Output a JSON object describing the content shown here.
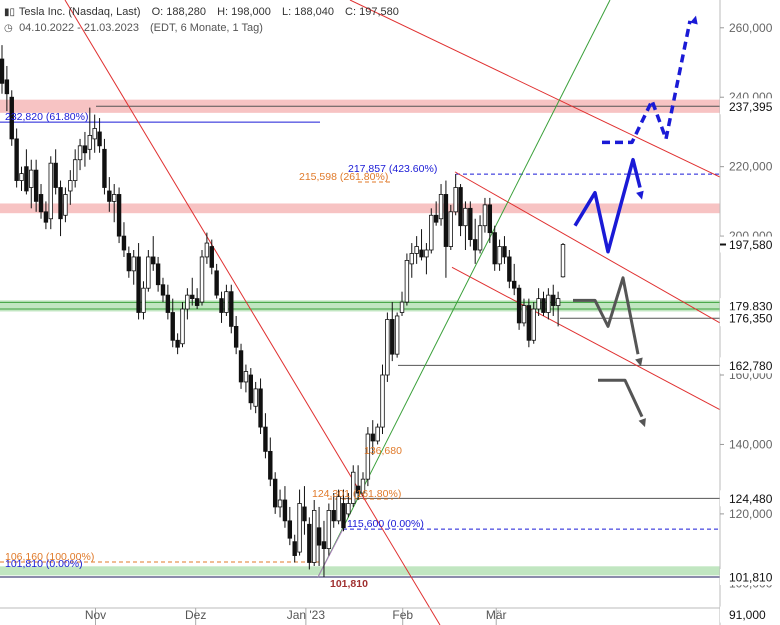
{
  "header": {
    "instrument": "Tesla Inc. (Nasdaq, Last)",
    "ohlc": {
      "O": "O: 188,280",
      "H": "H: 198,000",
      "L": "L: 188,040",
      "C": "C: 197,580"
    },
    "range": "04.10.2022 - 21.03.2023",
    "settings": "(EDT, 6 Monate, 1 Tag)",
    "icons": [
      "candlestick-icon",
      "clock-icon"
    ]
  },
  "chart_data": {
    "type": "candlestick",
    "title": "Tesla Inc. (Nasdaq, Last)",
    "x_range": [
      "2022-10-04",
      "2023-03-21"
    ],
    "x_tick_labels": [
      {
        "date": "2022-11-01",
        "label": "Nov"
      },
      {
        "date": "2022-12-01",
        "label": "Dez"
      },
      {
        "date": "2023-01-03",
        "label": "Jan '23"
      },
      {
        "date": "2023-02-01",
        "label": "Feb"
      },
      {
        "date": "2023-03-01",
        "label": "Mär"
      }
    ],
    "y_range": [
      88000,
      268000
    ],
    "y_ticks": [
      100000,
      120000,
      140000,
      160000,
      180000,
      200000,
      220000,
      240000,
      260000
    ],
    "y_tick_labels": [
      "100,000",
      "120,000",
      "140,000",
      "160,000",
      "180,000",
      "200,000",
      "220,000",
      "240,000",
      "260,000"
    ],
    "grid": false,
    "colors": {
      "up": "#ffffff",
      "down": "#111111",
      "red_line": "#e03030",
      "green_line": "#3aa03a",
      "blue": "#1a1ad6",
      "orange": "#e07a2a",
      "gray": "#555555",
      "red_zone": "#f4a9a9",
      "green_zone": "#a6dca6"
    },
    "candles": [
      [
        251.0,
        255.0,
        241.0,
        244.0
      ],
      [
        245.0,
        249.0,
        236.0,
        241.0
      ],
      [
        240.0,
        242.0,
        226.0,
        228.0
      ],
      [
        228.0,
        231.0,
        214.0,
        216.0
      ],
      [
        216.0,
        220.0,
        213.0,
        218.0
      ],
      [
        220.0,
        225.0,
        212.0,
        213.0
      ],
      [
        214.0,
        222.0,
        208.0,
        219.0
      ],
      [
        219.0,
        222.0,
        207.0,
        210.0
      ],
      [
        212.0,
        215.0,
        205.0,
        207.0
      ],
      [
        207.0,
        210.0,
        202.0,
        204.0
      ],
      [
        205.0,
        223.0,
        202.0,
        221.0
      ],
      [
        221.0,
        225.0,
        212.0,
        214.0
      ],
      [
        214.0,
        216.0,
        200.0,
        205.0
      ],
      [
        206.0,
        214.0,
        204.0,
        212.0
      ],
      [
        213.0,
        219.0,
        209.0,
        216.0
      ],
      [
        216.0,
        225.0,
        214.0,
        222.0
      ],
      [
        222.0,
        228.0,
        219.0,
        226.0
      ],
      [
        226.0,
        230.0,
        220.0,
        224.0
      ],
      [
        225.0,
        237.0,
        222.0,
        229.0
      ],
      [
        228.0,
        235.0,
        224.0,
        231.0
      ],
      [
        230.0,
        234.0,
        224.0,
        226.0
      ],
      [
        225.0,
        228.0,
        212.0,
        214.0
      ],
      [
        213.0,
        217.0,
        207.0,
        210.0
      ],
      [
        210.0,
        215.0,
        204.0,
        212.0
      ],
      [
        212.0,
        214.0,
        198.0,
        200.0
      ],
      [
        200.0,
        204.0,
        194.0,
        196.0
      ],
      [
        195.0,
        197.0,
        188.0,
        190.0
      ],
      [
        190.0,
        196.0,
        186.0,
        194.0
      ],
      [
        194.0,
        198.0,
        176.0,
        178.0
      ],
      [
        178.0,
        187.0,
        176.0,
        185.0
      ],
      [
        185.0,
        196.0,
        184.0,
        194.0
      ],
      [
        194.0,
        200.0,
        190.0,
        192.0
      ],
      [
        192.0,
        194.0,
        184.0,
        186.0
      ],
      [
        186.0,
        188.0,
        181.0,
        183.0
      ],
      [
        183.0,
        186.0,
        176.0,
        178.0
      ],
      [
        178.0,
        182.0,
        168.0,
        170.0
      ],
      [
        170.0,
        172.0,
        166.0,
        168.0
      ],
      [
        169.0,
        181.0,
        168.0,
        179.0
      ],
      [
        179.0,
        185.0,
        176.0,
        183.0
      ],
      [
        183.0,
        188.0,
        180.0,
        182.0
      ],
      [
        182.0,
        185.0,
        179.0,
        180.0
      ],
      [
        181.0,
        196.0,
        180.0,
        194.0
      ],
      [
        194.0,
        201.0,
        192.0,
        198.0
      ],
      [
        197.0,
        199.0,
        189.0,
        191.0
      ],
      [
        190.0,
        192.0,
        182.0,
        183.0
      ],
      [
        182.0,
        184.0,
        175.0,
        178.0
      ],
      [
        178.0,
        186.0,
        177.0,
        184.0
      ],
      [
        184.0,
        186.0,
        172.0,
        174.0
      ],
      [
        174.0,
        177.0,
        166.0,
        168.0
      ],
      [
        167.0,
        169.0,
        156.0,
        158.0
      ],
      [
        158.0,
        163.0,
        155.0,
        161.0
      ],
      [
        160.0,
        162.0,
        150.0,
        152.0
      ],
      [
        151.0,
        158.0,
        149.0,
        156.0
      ],
      [
        156.0,
        159.0,
        143.0,
        145.0
      ],
      [
        145.0,
        149.0,
        136.0,
        138.0
      ],
      [
        138.0,
        142.0,
        128.0,
        130.0
      ],
      [
        130.0,
        132.0,
        120.0,
        122.0
      ],
      [
        122.0,
        127.0,
        119.0,
        124.0
      ],
      [
        124.0,
        128.0,
        116.0,
        118.0
      ],
      [
        118.0,
        122.0,
        111.0,
        113.0
      ],
      [
        112.0,
        114.0,
        106.0,
        108.0
      ],
      [
        109.0,
        127.0,
        108.0,
        123.0
      ],
      [
        122.0,
        128.0,
        114.0,
        118.0
      ],
      [
        117.0,
        119.0,
        104.0,
        106.0
      ],
      [
        106.0,
        124.0,
        105.0,
        121.0
      ],
      [
        116.0,
        122.0,
        105.0,
        111.0
      ],
      [
        112.0,
        118.0,
        101.8,
        110.0
      ],
      [
        110.0,
        123.0,
        108.0,
        121.0
      ],
      [
        121.0,
        126.0,
        116.0,
        118.0
      ],
      [
        118.0,
        127.0,
        117.0,
        125.0
      ],
      [
        123.0,
        127.0,
        115.0,
        116.0
      ],
      [
        120.0,
        126.0,
        119.0,
        123.0
      ],
      [
        123.0,
        134.0,
        122.0,
        132.0
      ],
      [
        128.0,
        134.0,
        124.0,
        126.0
      ],
      [
        126.0,
        132.0,
        125.0,
        130.0
      ],
      [
        130.0,
        145.0,
        128.0,
        143.0
      ],
      [
        143.0,
        147.0,
        137.0,
        141.0
      ],
      [
        141.0,
        146.0,
        140.0,
        145.0
      ],
      [
        145.0,
        163.0,
        143.0,
        160.0
      ],
      [
        160.0,
        178.0,
        158.0,
        176.0
      ],
      [
        176.0,
        181.0,
        164.0,
        166.0
      ],
      [
        166.0,
        178.0,
        165.0,
        177.0
      ],
      [
        178.0,
        184.0,
        177.0,
        181.0
      ],
      [
        181.0,
        195.0,
        180.0,
        193.0
      ],
      [
        192.0,
        198.0,
        188.0,
        195.0
      ],
      [
        195.0,
        200.0,
        192.0,
        197.0
      ],
      [
        196.0,
        202.0,
        193.0,
        194.0
      ],
      [
        194.0,
        198.0,
        189.0,
        196.0
      ],
      [
        196.0,
        208.0,
        195.0,
        206.0
      ],
      [
        206.0,
        210.0,
        203.0,
        204.0
      ],
      [
        205.0,
        215.0,
        203.0,
        212.0
      ],
      [
        212.0,
        216.0,
        188.0,
        197.0
      ],
      [
        197.0,
        209.0,
        196.0,
        207.0
      ],
      [
        207.0,
        217.9,
        206.0,
        214.0
      ],
      [
        214.0,
        215.0,
        200.0,
        203.0
      ],
      [
        203.0,
        210.0,
        196.0,
        208.0
      ],
      [
        208.0,
        210.0,
        197.0,
        199.0
      ],
      [
        199.0,
        205.0,
        192.0,
        196.0
      ],
      [
        196.0,
        206.0,
        195.0,
        203.0
      ],
      [
        203.0,
        211.0,
        201.0,
        209.0
      ],
      [
        209.0,
        211.0,
        198.0,
        201.0
      ],
      [
        201.0,
        203.0,
        190.0,
        192.0
      ],
      [
        192.0,
        199.0,
        190.0,
        197.0
      ],
      [
        197.0,
        200.0,
        192.0,
        194.0
      ],
      [
        194.0,
        196.0,
        185.0,
        187.0
      ],
      [
        187.0,
        192.0,
        183.0,
        185.0
      ],
      [
        185.0,
        186.0,
        173.0,
        175.0
      ],
      [
        175.0,
        182.0,
        174.0,
        180.0
      ],
      [
        180.0,
        182.0,
        168.0,
        170.0
      ],
      [
        170.0,
        181.0,
        169.0,
        179.0
      ],
      [
        179.0,
        185.0,
        177.0,
        182.0
      ],
      [
        182.0,
        184.0,
        177.0,
        178.0
      ],
      [
        178.0,
        185.0,
        176.0,
        183.0
      ],
      [
        183.0,
        186.0,
        177.0,
        180.0
      ],
      [
        180.0,
        184.0,
        174.0,
        182.0
      ],
      [
        188.28,
        198.0,
        188.04,
        197.58
      ]
    ],
    "horizontal_levels": [
      {
        "value": 237395,
        "label": "237,395",
        "kind": "resistance-zone-red"
      },
      {
        "value": 208000,
        "label": "",
        "kind": "zone-red"
      },
      {
        "value": 179830,
        "label": "179,830",
        "kind": "support-zone-green"
      },
      {
        "value": 176350,
        "label": "176,350",
        "kind": "line-gray"
      },
      {
        "value": 162780,
        "label": "162,780",
        "kind": "line-gray"
      },
      {
        "value": 124480,
        "label": "124,480",
        "kind": "line-gray"
      },
      {
        "value": 103400,
        "label": "",
        "kind": "zone-green"
      },
      {
        "value": 101810,
        "label": "101,810",
        "kind": "line-navy"
      },
      {
        "value": 91000,
        "label": "91,000",
        "kind": "line-gray"
      }
    ],
    "last_price": {
      "value": 197580,
      "label": "197,580"
    },
    "annotations": [
      {
        "text": "232,820 (61.80%)",
        "color": "blue"
      },
      {
        "text": "217,857 (423.60%)",
        "color": "blue"
      },
      {
        "text": "215,598 (261.80%)",
        "color": "orange"
      },
      {
        "text": "136,680",
        "color": "orange"
      },
      {
        "text": "124,301 (161.80%)",
        "color": "orange"
      },
      {
        "text": "115,600 (0.00%)",
        "color": "blue"
      },
      {
        "text": "106,160 (100.00%)",
        "color": "orange"
      },
      {
        "text": "101,810 (0.00%)",
        "color": "blue"
      },
      {
        "text": "101,810",
        "color": "darkred"
      }
    ]
  }
}
